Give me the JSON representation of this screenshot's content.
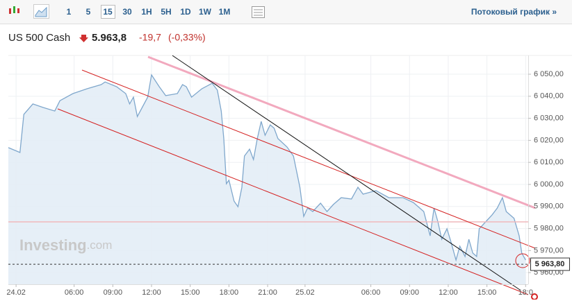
{
  "toolbar": {
    "intervals": [
      "1",
      "5",
      "15",
      "30",
      "1H",
      "5H",
      "1D",
      "1W",
      "1M"
    ],
    "active_interval": 2,
    "stream_link": "Потоковый график »"
  },
  "header": {
    "instrument": "US 500 Cash",
    "price": "5.963,8",
    "change": "-19,7",
    "change_percent": "(-0,33%)"
  },
  "watermark": {
    "brand": "Investing",
    "suffix": ".com"
  },
  "chart_data": {
    "type": "area",
    "x": [
      0,
      0.9,
      1.2,
      1.9,
      2.7,
      3.6,
      4.0,
      5.0,
      6.1,
      7.2,
      7.5,
      8.4,
      9.1,
      9.4,
      9.7,
      10.0,
      10.8,
      11.1,
      11.7,
      12.2,
      13.1,
      13.5,
      13.8,
      14.2,
      15.0,
      15.8,
      16.2,
      16.5,
      16.7,
      16.9,
      17.1,
      17.5,
      17.8,
      18.1,
      18.3,
      18.7,
      19.0,
      19.3,
      19.6,
      19.9,
      20.3,
      20.6,
      20.9,
      21.6,
      22.1,
      22.6,
      22.9,
      23.2,
      23.6,
      24.2,
      24.7,
      25.2,
      25.8,
      26.6,
      27.1,
      27.5,
      28.5,
      29.5,
      30.6,
      31.4,
      32.2,
      32.7,
      33.0,
      33.3,
      33.6,
      34.0,
      34.3,
      34.7,
      35.0,
      35.4,
      35.7,
      36.0,
      36.3,
      36.5,
      37.0,
      37.5,
      37.9,
      38.3,
      38.6,
      39.2,
      39.6,
      39.8,
      40.1
    ],
    "series": [
      {
        "color": "#7fa7cc",
        "values": [
          6016.7,
          6014.5,
          6031.8,
          6036.5,
          6034.9,
          6033.3,
          6038.0,
          6041.2,
          6043.4,
          6045.3,
          6046.5,
          6044.3,
          6041.2,
          6036.5,
          6039.6,
          6030.8,
          6039.6,
          6049.7,
          6044.3,
          6040.3,
          6041.2,
          6045.3,
          6044.3,
          6039.6,
          6043.4,
          6045.9,
          6042.8,
          6033.3,
          6020.8,
          6000.3,
          6001.9,
          5992.4,
          5989.9,
          5998.7,
          6012.9,
          6016.0,
          6011.3,
          6020.8,
          6028.6,
          6022.3,
          6027.0,
          6025.5,
          6020.8,
          6017.0,
          6012.9,
          5998.7,
          5985.5,
          5989.3,
          5987.7,
          5991.5,
          5987.7,
          5990.9,
          5994.0,
          5993.4,
          5998.7,
          5995.6,
          5997.2,
          5994.0,
          5994.0,
          5991.8,
          5987.7,
          5976.7,
          5989.3,
          5983.0,
          5975.1,
          5979.9,
          5974.2,
          5965.7,
          5972.0,
          5967.3,
          5975.1,
          5968.9,
          5967.3,
          5979.9,
          5983.0,
          5986.2,
          5989.3,
          5994.0,
          5987.7,
          5984.6,
          5976.7,
          5968.9,
          5965.7
        ]
      }
    ],
    "last_price": {
      "value": 5963.8,
      "label": "5 963,80"
    },
    "xlim": [
      0,
      40.3
    ],
    "xticks": [
      {
        "value": 0.6,
        "label": "24.02"
      },
      {
        "value": 5.1,
        "label": "06:00"
      },
      {
        "value": 8.1,
        "label": "09:00"
      },
      {
        "value": 11.1,
        "label": "12:00"
      },
      {
        "value": 14.1,
        "label": "15:00"
      },
      {
        "value": 17.1,
        "label": "18:00"
      },
      {
        "value": 20.1,
        "label": "21:00"
      },
      {
        "value": 23.0,
        "label": "25.02"
      },
      {
        "value": 28.1,
        "label": "06:00"
      },
      {
        "value": 31.1,
        "label": "09:00"
      },
      {
        "value": 34.1,
        "label": "12:00"
      },
      {
        "value": 37.1,
        "label": "15:00"
      },
      {
        "value": 40.1,
        "label": "18:0"
      }
    ],
    "ylim": [
      5954.7,
      6058.5
    ],
    "yticks": [
      {
        "value": 6050,
        "label": "6 050,00"
      },
      {
        "value": 6040,
        "label": "6 040,00"
      },
      {
        "value": 6030,
        "label": "6 030,00"
      },
      {
        "value": 6020,
        "label": "6 020,00"
      },
      {
        "value": 6010,
        "label": "6 010,00"
      },
      {
        "value": 6000,
        "label": "6 000,00"
      },
      {
        "value": 5990,
        "label": "5 990,00"
      },
      {
        "value": 5980,
        "label": "5 980,00"
      },
      {
        "value": 5970,
        "label": "5 970,00"
      },
      {
        "value": 5960,
        "label": "5 960,00"
      }
    ],
    "grid": true
  }
}
